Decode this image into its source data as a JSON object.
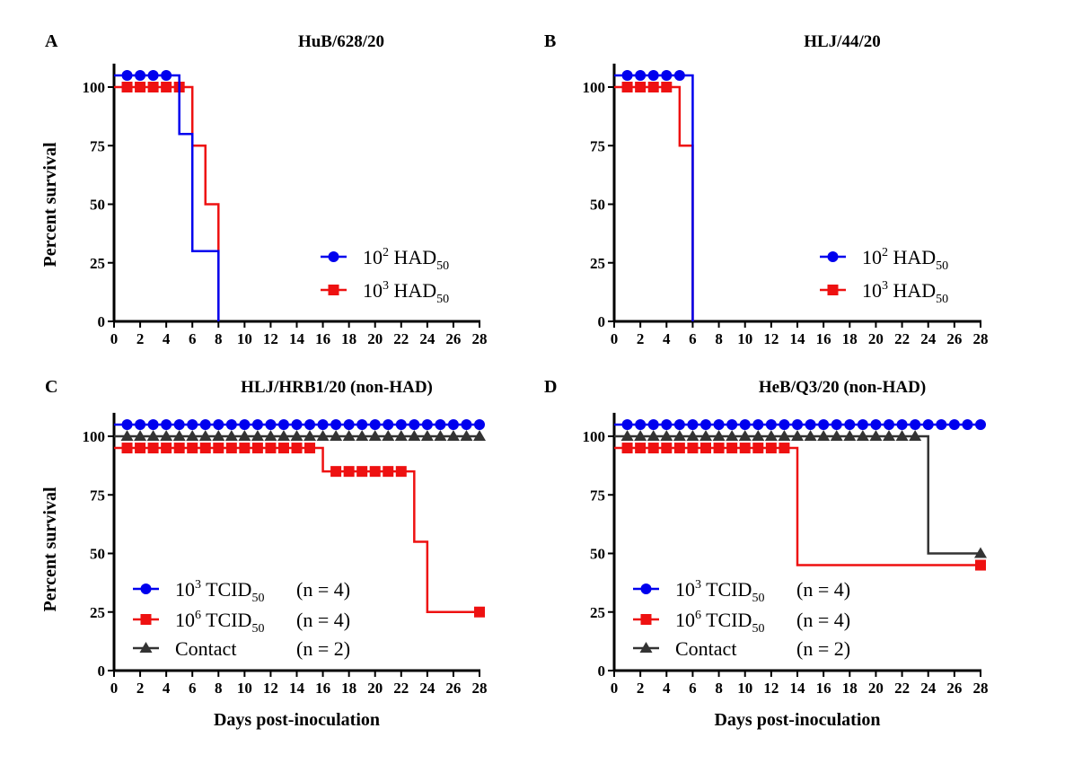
{
  "chart_data": [
    {
      "type": "line",
      "panel_label": "A",
      "title": "HuB/628/20",
      "ylabel": "Percent survival",
      "xlabel": "",
      "xlim": [
        0,
        28
      ],
      "ylim": [
        0,
        110
      ],
      "xticks": [
        "0",
        "2",
        "4",
        "6",
        "8",
        "10",
        "12",
        "14",
        "16",
        "18",
        "20",
        "22",
        "24",
        "26",
        "28"
      ],
      "yticks": [
        "0",
        "25",
        "50",
        "75",
        "100"
      ],
      "legend_position": "middle-right",
      "series": [
        {
          "name": {
            "base": "10",
            "sup": "2",
            "mid": " HAD",
            "sub": "50",
            "n": ""
          },
          "color": "#0000ee",
          "marker": "circle",
          "steps": [
            [
              0,
              105
            ],
            [
              5,
              80
            ],
            [
              6,
              30
            ],
            [
              8,
              0
            ]
          ],
          "marker_days": [
            1,
            2,
            3,
            4
          ]
        },
        {
          "name": {
            "base": "10",
            "sup": "3",
            "mid": " HAD",
            "sub": "50",
            "n": ""
          },
          "color": "#ee1111",
          "marker": "square",
          "steps": [
            [
              0,
              100
            ],
            [
              6,
              75
            ],
            [
              7,
              50
            ],
            [
              8,
              0
            ]
          ],
          "marker_days": [
            1,
            2,
            3,
            4,
            5
          ]
        }
      ]
    },
    {
      "type": "line",
      "panel_label": "B",
      "title": "HLJ/44/20",
      "ylabel": "",
      "xlabel": "",
      "xlim": [
        0,
        28
      ],
      "ylim": [
        0,
        110
      ],
      "xticks": [
        "0",
        "2",
        "4",
        "6",
        "8",
        "10",
        "12",
        "14",
        "16",
        "18",
        "20",
        "22",
        "24",
        "26",
        "28"
      ],
      "yticks": [
        "0",
        "25",
        "50",
        "75",
        "100"
      ],
      "legend_position": "middle-right",
      "series": [
        {
          "name": {
            "base": "10",
            "sup": "2",
            "mid": " HAD",
            "sub": "50",
            "n": ""
          },
          "color": "#0000ee",
          "marker": "circle",
          "steps": [
            [
              0,
              105
            ],
            [
              6,
              0
            ]
          ],
          "marker_days": [
            1,
            2,
            3,
            4,
            5
          ]
        },
        {
          "name": {
            "base": "10",
            "sup": "3",
            "mid": " HAD",
            "sub": "50",
            "n": ""
          },
          "color": "#ee1111",
          "marker": "square",
          "steps": [
            [
              0,
              100
            ],
            [
              5,
              75
            ],
            [
              6,
              0
            ]
          ],
          "marker_days": [
            1,
            2,
            3,
            4
          ]
        }
      ]
    },
    {
      "type": "line",
      "panel_label": "C",
      "title": "HLJ/HRB1/20 (non-HAD)",
      "ylabel": "Percent survival",
      "xlabel": "Days post-inoculation",
      "xlim": [
        0,
        28
      ],
      "ylim": [
        0,
        110
      ],
      "xticks": [
        "0",
        "2",
        "4",
        "6",
        "8",
        "10",
        "12",
        "14",
        "16",
        "18",
        "20",
        "22",
        "24",
        "26",
        "28"
      ],
      "yticks": [
        "0",
        "25",
        "50",
        "75",
        "100"
      ],
      "legend_position": "bottom-left",
      "series": [
        {
          "name": {
            "base": "10",
            "sup": "3",
            "mid": " TCID",
            "sub": "50",
            "n": "(n = 4)"
          },
          "color": "#0000ee",
          "marker": "circle",
          "steps": [
            [
              0,
              105
            ],
            [
              28,
              105
            ]
          ],
          "marker_days": [
            1,
            2,
            3,
            4,
            5,
            6,
            7,
            8,
            9,
            10,
            11,
            12,
            13,
            14,
            15,
            16,
            17,
            18,
            19,
            20,
            21,
            22,
            23,
            24,
            25,
            26,
            27,
            28
          ]
        },
        {
          "name": {
            "base": "10",
            "sup": "6",
            "mid": " TCID",
            "sub": "50",
            "n": "(n = 4)"
          },
          "color": "#ee1111",
          "marker": "square",
          "steps": [
            [
              0,
              95
            ],
            [
              16,
              85
            ],
            [
              23,
              55
            ],
            [
              24,
              25
            ],
            [
              28,
              25
            ]
          ],
          "marker_days": [
            1,
            2,
            3,
            4,
            5,
            6,
            7,
            8,
            9,
            10,
            11,
            12,
            13,
            14,
            15,
            17,
            18,
            19,
            20,
            21,
            22,
            28
          ]
        },
        {
          "name": {
            "base": "Contact",
            "sup": "",
            "mid": "",
            "sub": "",
            "n": "(n = 2)"
          },
          "color": "#333333",
          "marker": "triangle",
          "steps": [
            [
              0,
              100
            ],
            [
              28,
              100
            ]
          ],
          "marker_days": [
            1,
            2,
            3,
            4,
            5,
            6,
            7,
            8,
            9,
            10,
            11,
            12,
            13,
            14,
            15,
            16,
            17,
            18,
            19,
            20,
            21,
            22,
            23,
            24,
            25,
            26,
            27,
            28
          ]
        }
      ]
    },
    {
      "type": "line",
      "panel_label": "D",
      "title": "HeB/Q3/20 (non-HAD)",
      "ylabel": "Percent survival",
      "xlabel": "Days post-inoculation",
      "xlim": [
        0,
        28
      ],
      "ylim": [
        0,
        110
      ],
      "xticks": [
        "0",
        "2",
        "4",
        "6",
        "8",
        "10",
        "12",
        "14",
        "16",
        "18",
        "20",
        "22",
        "24",
        "26",
        "28"
      ],
      "yticks": [
        "0",
        "25",
        "50",
        "75",
        "100"
      ],
      "legend_position": "bottom-left",
      "series": [
        {
          "name": {
            "base": "10",
            "sup": "3",
            "mid": " TCID",
            "sub": "50",
            "n": "(n = 4)"
          },
          "color": "#0000ee",
          "marker": "circle",
          "steps": [
            [
              0,
              105
            ],
            [
              28,
              105
            ]
          ],
          "marker_days": [
            1,
            2,
            3,
            4,
            5,
            6,
            7,
            8,
            9,
            10,
            11,
            12,
            13,
            14,
            15,
            16,
            17,
            18,
            19,
            20,
            21,
            22,
            23,
            24,
            25,
            26,
            27,
            28
          ]
        },
        {
          "name": {
            "base": "10",
            "sup": "6",
            "mid": " TCID",
            "sub": "50",
            "n": "(n = 4)"
          },
          "color": "#ee1111",
          "marker": "square",
          "steps": [
            [
              0,
              95
            ],
            [
              14,
              45
            ],
            [
              28,
              45
            ]
          ],
          "marker_days": [
            1,
            2,
            3,
            4,
            5,
            6,
            7,
            8,
            9,
            10,
            11,
            12,
            13,
            28
          ]
        },
        {
          "name": {
            "base": "Contact",
            "sup": "",
            "mid": "",
            "sub": "",
            "n": "(n = 2)"
          },
          "color": "#333333",
          "marker": "triangle",
          "steps": [
            [
              0,
              100
            ],
            [
              24,
              50
            ],
            [
              28,
              50
            ]
          ],
          "marker_days": [
            1,
            2,
            3,
            4,
            5,
            6,
            7,
            8,
            9,
            10,
            11,
            12,
            13,
            14,
            15,
            16,
            17,
            18,
            19,
            20,
            21,
            22,
            23,
            28
          ]
        }
      ]
    }
  ]
}
